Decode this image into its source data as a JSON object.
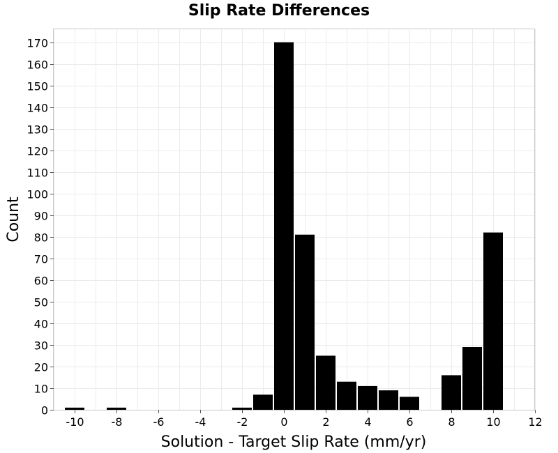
{
  "chart_data": {
    "type": "bar",
    "title": "Slip Rate Differences",
    "xlabel": "Solution - Target Slip Rate (mm/yr)",
    "ylabel": "Count",
    "xlim": [
      -11,
      12
    ],
    "ylim": [
      0,
      176
    ],
    "bin_width": 1,
    "xticks": [
      -10,
      -8,
      -6,
      -4,
      -2,
      0,
      2,
      4,
      6,
      8,
      10,
      12
    ],
    "yticks": [
      0,
      10,
      20,
      30,
      40,
      50,
      60,
      70,
      80,
      90,
      100,
      110,
      120,
      130,
      140,
      150,
      160,
      170
    ],
    "grid": true,
    "bar_color": "#000000",
    "bins": [
      {
        "x": -10,
        "count": 1
      },
      {
        "x": -8,
        "count": 1
      },
      {
        "x": -2,
        "count": 1
      },
      {
        "x": -1,
        "count": 7
      },
      {
        "x": 0,
        "count": 170
      },
      {
        "x": 1,
        "count": 81
      },
      {
        "x": 2,
        "count": 25
      },
      {
        "x": 3,
        "count": 13
      },
      {
        "x": 4,
        "count": 11
      },
      {
        "x": 5,
        "count": 9
      },
      {
        "x": 6,
        "count": 6
      },
      {
        "x": 8,
        "count": 16
      },
      {
        "x": 9,
        "count": 29
      },
      {
        "x": 10,
        "count": 82
      }
    ]
  }
}
